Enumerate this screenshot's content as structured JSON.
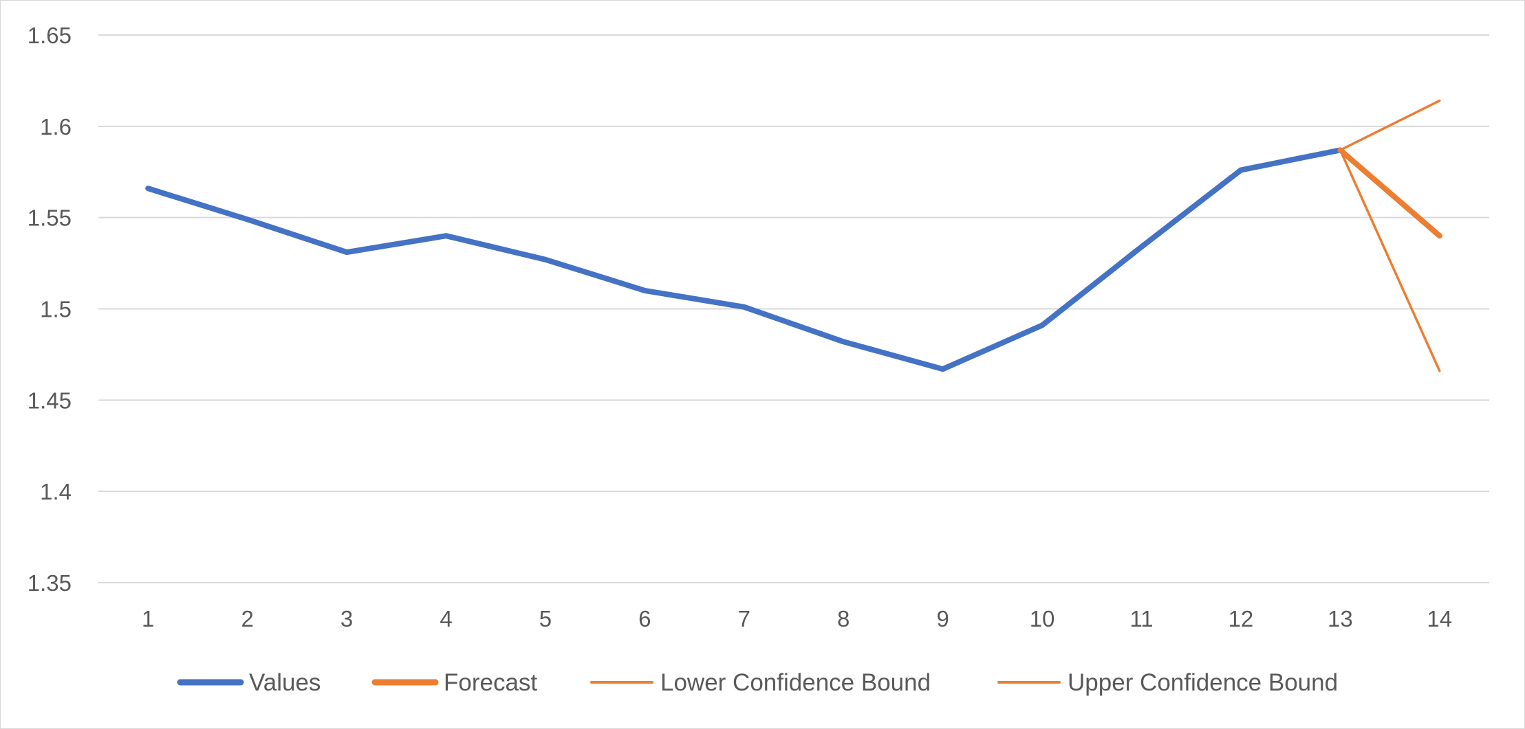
{
  "chart_data": {
    "type": "line",
    "title": "",
    "xlabel": "",
    "ylabel": "",
    "x": [
      1,
      2,
      3,
      4,
      5,
      6,
      7,
      8,
      9,
      10,
      11,
      12,
      13,
      14
    ],
    "ylim": [
      1.35,
      1.65
    ],
    "yticks": [
      "1.35",
      "1.4",
      "1.45",
      "1.5",
      "1.55",
      "1.6",
      "1.65"
    ],
    "xticks": [
      "1",
      "2",
      "3",
      "4",
      "5",
      "6",
      "7",
      "8",
      "9",
      "10",
      "11",
      "12",
      "13",
      "14"
    ],
    "grid": true,
    "legend_position": "bottom",
    "series": [
      {
        "name": "Values",
        "color": "#4472c4",
        "style": "thick",
        "points": [
          [
            1,
            1.566
          ],
          [
            2,
            1.549
          ],
          [
            3,
            1.531
          ],
          [
            4,
            1.54
          ],
          [
            5,
            1.527
          ],
          [
            6,
            1.51
          ],
          [
            7,
            1.501
          ],
          [
            8,
            1.482
          ],
          [
            9,
            1.467
          ],
          [
            10,
            1.491
          ],
          [
            11,
            1.534
          ],
          [
            12,
            1.576
          ],
          [
            13,
            1.587
          ]
        ]
      },
      {
        "name": "Forecast",
        "color": "#ed7d31",
        "style": "thick",
        "points": [
          [
            13,
            1.587
          ],
          [
            14,
            1.54
          ]
        ]
      },
      {
        "name": "Lower Confidence Bound",
        "color": "#ed7d31",
        "style": "thin",
        "points": [
          [
            13,
            1.587
          ],
          [
            14,
            1.466
          ]
        ]
      },
      {
        "name": "Upper Confidence Bound",
        "color": "#ed7d31",
        "style": "thin",
        "points": [
          [
            13,
            1.587
          ],
          [
            14,
            1.614
          ]
        ]
      }
    ]
  }
}
